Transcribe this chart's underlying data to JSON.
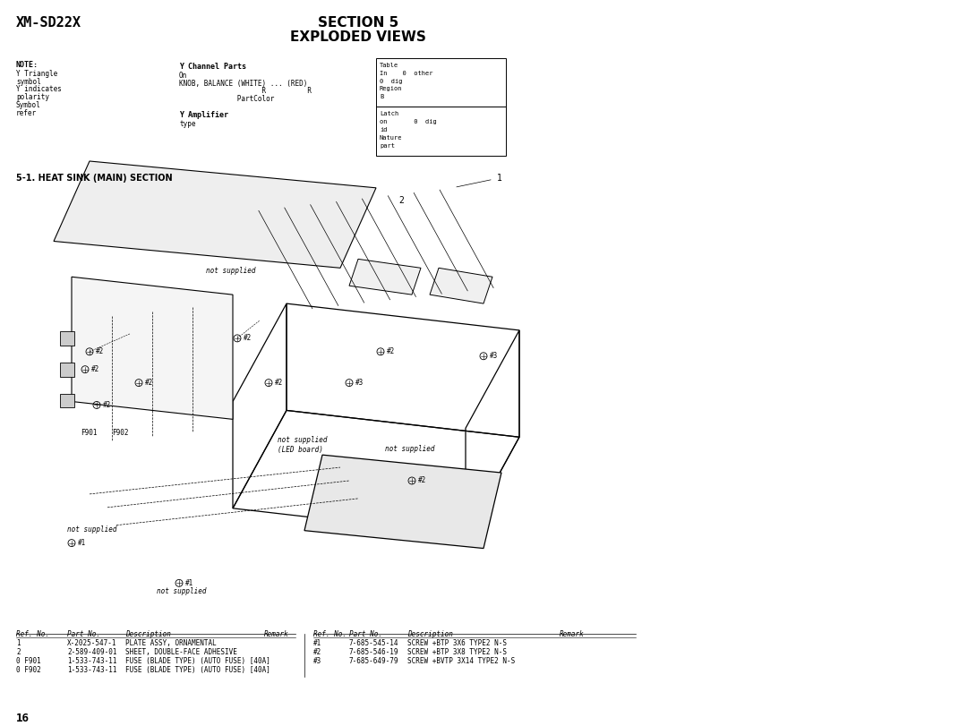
{
  "title_model": "XM-SD22X",
  "section_title_line1": "SECTION 5",
  "section_title_line2": "EXPLODED VIEWS",
  "subsection_title": "5-1. HEAT SINK (MAIN) SECTION",
  "page_number": "16",
  "note_label": "NOTE:",
  "note_lines": [
    "Y Triangle",
    "symbol",
    "Y indicates",
    "polarity",
    "Symbol",
    "refer"
  ],
  "y_channel_parts_label": "Y Channel Parts",
  "y_channel_parts_lines": [
    "On",
    "KNOB, BALANCE (WHITE) ... (RED)",
    "                    R          R",
    "              PartColor"
  ],
  "y_amplifier_label": "Y Amplifier",
  "y_amplifier_lines": [
    "type"
  ],
  "table1_lines": [
    "Table",
    "In    0  other",
    "0  dig",
    "Region",
    "B"
  ],
  "table2_lines": [
    "Latch",
    "on       0  dig",
    "id",
    "Nature",
    "part"
  ],
  "parts_table_left": [
    {
      "ref": "1",
      "part": "X-2025-547-1",
      "desc": "PLATE ASSY, ORNAMENTAL",
      "remark": ""
    },
    {
      "ref": "2",
      "part": "2-589-409-01",
      "desc": "SHEET, DOUBLE-FACE ADHESIVE",
      "remark": ""
    },
    {
      "ref": "0 F901",
      "part": "1-533-743-11",
      "desc": "FUSE (BLADE TYPE) (AUTO FUSE) [40A]",
      "remark": ""
    },
    {
      "ref": "0 F902",
      "part": "1-533-743-11",
      "desc": "FUSE (BLADE TYPE) (AUTO FUSE) [40A]",
      "remark": ""
    }
  ],
  "parts_table_right": [
    {
      "ref": "#1",
      "part": "7-685-545-14",
      "desc": "SCREW +BTP 3X6 TYPE2 N-S",
      "remark": ""
    },
    {
      "ref": "#2",
      "part": "7-685-546-19",
      "desc": "SCREW +BTP 3X8 TYPE2 N-S",
      "remark": ""
    },
    {
      "ref": "#3",
      "part": "7-685-649-79",
      "desc": "SCREW +BVTP 3X14 TYPE2 N-S",
      "remark": ""
    }
  ],
  "col_headers_left": [
    "Ref. No.",
    "Part No.",
    "Description",
    "Remark"
  ],
  "col_headers_right": [
    "Ref. No.",
    "Part No.",
    "Description",
    "Remark"
  ],
  "bg_color": "#ffffff",
  "text_color": "#000000",
  "diagram_color": "#000000",
  "font_size_title": 9,
  "font_size_model": 10,
  "font_size_section": 11,
  "font_size_body": 6,
  "font_size_parts": 6.5
}
